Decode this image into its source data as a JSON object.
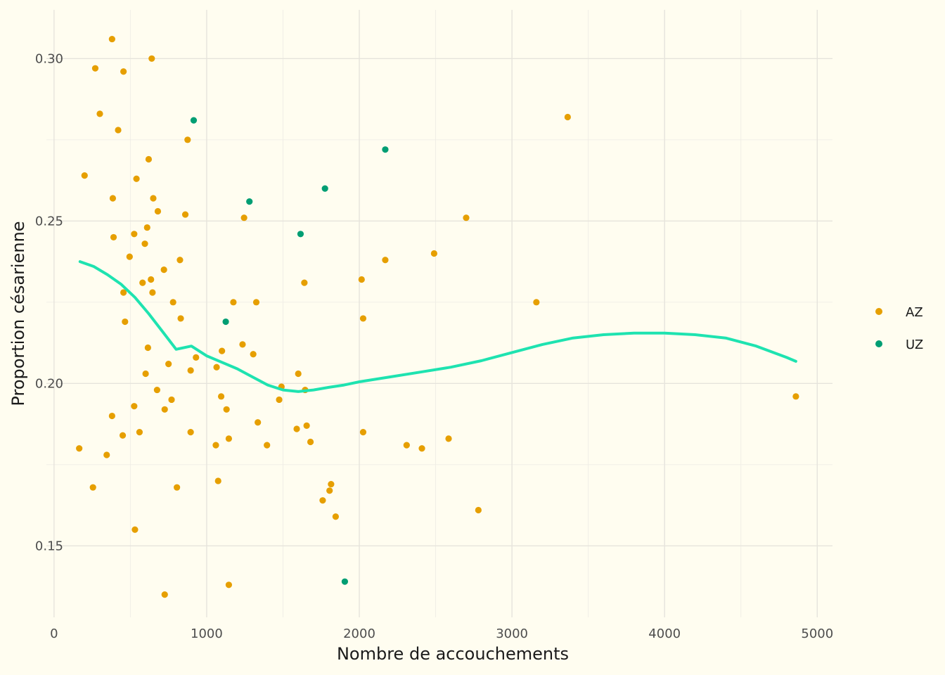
{
  "chart_data": {
    "type": "scatter",
    "xlabel": "Nombre de accouchements",
    "ylabel": "Proportion césarienne",
    "xlim": [
      -50,
      5100
    ],
    "ylim": [
      0.128,
      0.315
    ],
    "x_ticks": [
      0,
      1000,
      2000,
      3000,
      4000,
      5000
    ],
    "x_tick_labels": [
      "0",
      "1000",
      "2000",
      "3000",
      "4000",
      "5000"
    ],
    "x_minor_ticks": [
      500,
      1500,
      2500,
      3500,
      4500
    ],
    "y_ticks": [
      0.15,
      0.2,
      0.25,
      0.3
    ],
    "y_tick_labels": [
      "0.15",
      "0.20",
      "0.25",
      "0.30"
    ],
    "y_minor_ticks": [
      0.175,
      0.225,
      0.275
    ],
    "grid": true,
    "legend_position": "right",
    "series": [
      {
        "name": "AZ",
        "color": "#e69f00",
        "points": [
          [
            380,
            0.306
          ],
          [
            640,
            0.3
          ],
          [
            270,
            0.297
          ],
          [
            455,
            0.296
          ],
          [
            300,
            0.283
          ],
          [
            420,
            0.278
          ],
          [
            875,
            0.275
          ],
          [
            620,
            0.269
          ],
          [
            200,
            0.264
          ],
          [
            540,
            0.263
          ],
          [
            650,
            0.257
          ],
          [
            385,
            0.257
          ],
          [
            680,
            0.253
          ],
          [
            860,
            0.252
          ],
          [
            1245,
            0.251
          ],
          [
            610,
            0.248
          ],
          [
            525,
            0.246
          ],
          [
            390,
            0.245
          ],
          [
            595,
            0.243
          ],
          [
            495,
            0.239
          ],
          [
            825,
            0.238
          ],
          [
            720,
            0.235
          ],
          [
            635,
            0.232
          ],
          [
            580,
            0.231
          ],
          [
            1640,
            0.231
          ],
          [
            455,
            0.228
          ],
          [
            645,
            0.228
          ],
          [
            780,
            0.225
          ],
          [
            1175,
            0.225
          ],
          [
            1325,
            0.225
          ],
          [
            465,
            0.219
          ],
          [
            830,
            0.22
          ],
          [
            1235,
            0.212
          ],
          [
            615,
            0.211
          ],
          [
            1100,
            0.21
          ],
          [
            1305,
            0.209
          ],
          [
            930,
            0.208
          ],
          [
            750,
            0.206
          ],
          [
            1065,
            0.205
          ],
          [
            895,
            0.204
          ],
          [
            600,
            0.203
          ],
          [
            1600,
            0.203
          ],
          [
            1490,
            0.199
          ],
          [
            675,
            0.198
          ],
          [
            1645,
            0.198
          ],
          [
            1095,
            0.196
          ],
          [
            1475,
            0.195
          ],
          [
            770,
            0.195
          ],
          [
            525,
            0.193
          ],
          [
            725,
            0.192
          ],
          [
            1130,
            0.192
          ],
          [
            380,
            0.19
          ],
          [
            1335,
            0.188
          ],
          [
            1655,
            0.187
          ],
          [
            1590,
            0.186
          ],
          [
            895,
            0.185
          ],
          [
            560,
            0.185
          ],
          [
            450,
            0.184
          ],
          [
            1145,
            0.183
          ],
          [
            1680,
            0.182
          ],
          [
            1060,
            0.181
          ],
          [
            1395,
            0.181
          ],
          [
            165,
            0.18
          ],
          [
            345,
            0.178
          ],
          [
            1075,
            0.17
          ],
          [
            255,
            0.168
          ],
          [
            805,
            0.168
          ],
          [
            1815,
            0.169
          ],
          [
            1805,
            0.167
          ],
          [
            1760,
            0.164
          ],
          [
            1845,
            0.159
          ],
          [
            530,
            0.155
          ],
          [
            725,
            0.135
          ],
          [
            1145,
            0.138
          ],
          [
            2015,
            0.232
          ],
          [
            2025,
            0.22
          ],
          [
            2025,
            0.185
          ],
          [
            2170,
            0.238
          ],
          [
            2310,
            0.181
          ],
          [
            2410,
            0.18
          ],
          [
            2490,
            0.24
          ],
          [
            2585,
            0.183
          ],
          [
            2700,
            0.251
          ],
          [
            2780,
            0.161
          ],
          [
            3160,
            0.225
          ],
          [
            3365,
            0.282
          ],
          [
            4860,
            0.196
          ]
        ]
      },
      {
        "name": "UZ",
        "color": "#009e73",
        "points": [
          [
            915,
            0.281
          ],
          [
            2170,
            0.272
          ],
          [
            1775,
            0.26
          ],
          [
            1280,
            0.256
          ],
          [
            1615,
            0.246
          ],
          [
            1125,
            0.219
          ],
          [
            1905,
            0.139
          ]
        ]
      }
    ],
    "smooth_line": {
      "color": "#1ee3b0",
      "points": [
        [
          170,
          0.2375
        ],
        [
          260,
          0.236
        ],
        [
          350,
          0.2335
        ],
        [
          440,
          0.2305
        ],
        [
          530,
          0.2265
        ],
        [
          620,
          0.2215
        ],
        [
          710,
          0.216
        ],
        [
          800,
          0.2105
        ],
        [
          900,
          0.2115
        ],
        [
          1000,
          0.2085
        ],
        [
          1100,
          0.2065
        ],
        [
          1200,
          0.2045
        ],
        [
          1300,
          0.202
        ],
        [
          1400,
          0.1995
        ],
        [
          1500,
          0.198
        ],
        [
          1600,
          0.1975
        ],
        [
          1700,
          0.198
        ],
        [
          1800,
          0.1988
        ],
        [
          1900,
          0.1995
        ],
        [
          2000,
          0.2005
        ],
        [
          2200,
          0.202
        ],
        [
          2400,
          0.2035
        ],
        [
          2600,
          0.205
        ],
        [
          2800,
          0.207
        ],
        [
          3000,
          0.2095
        ],
        [
          3200,
          0.212
        ],
        [
          3400,
          0.214
        ],
        [
          3600,
          0.215
        ],
        [
          3800,
          0.2155
        ],
        [
          4000,
          0.2155
        ],
        [
          4200,
          0.215
        ],
        [
          4400,
          0.214
        ],
        [
          4600,
          0.2115
        ],
        [
          4800,
          0.208
        ],
        [
          4860,
          0.2068
        ]
      ]
    }
  }
}
